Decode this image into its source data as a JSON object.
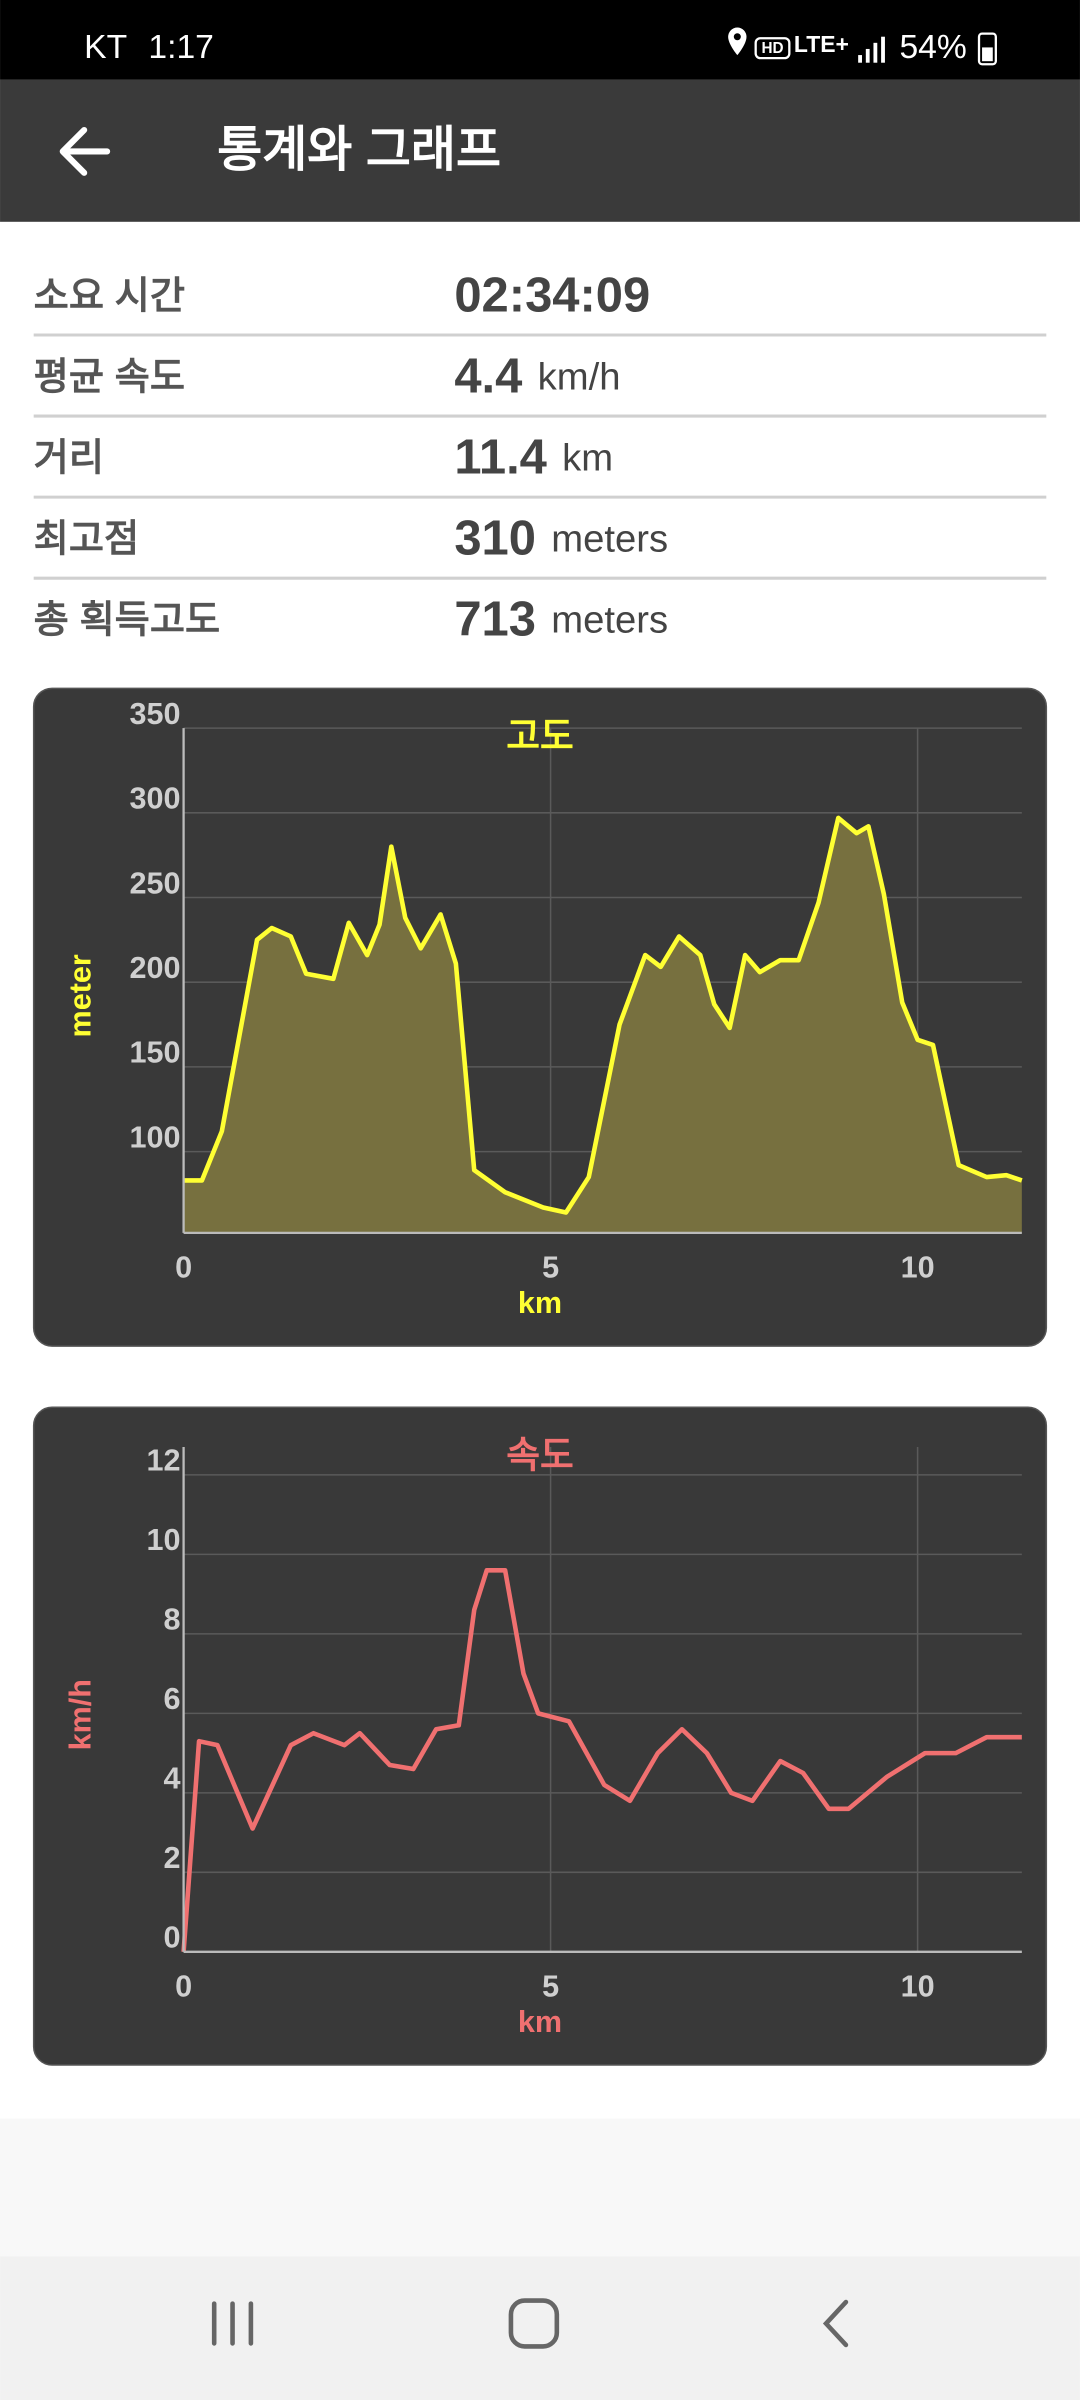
{
  "status_bar": {
    "carrier": "KT",
    "time": "1:17",
    "hd": "HD",
    "network": "LTE+",
    "battery": "54%"
  },
  "app_bar": {
    "title": "통계와 그래프"
  },
  "stats": [
    {
      "label": "소요 시간",
      "value": "02:34:09"
    },
    {
      "label": "평균 속도",
      "value": 4.4,
      "unit": "km/h"
    },
    {
      "label": "거리",
      "value": 11.4,
      "unit": "km"
    },
    {
      "label": "최고점",
      "value": 310,
      "unit": "meters"
    },
    {
      "label": "총 획득고도",
      "value": 713,
      "unit": "meters"
    }
  ],
  "chart_data": [
    {
      "type": "area",
      "title": "고도",
      "y_label": "meter",
      "x_label": "km",
      "color": "#ffff33",
      "fill_color": "#77703f",
      "grid": true,
      "x": [
        0,
        0.25,
        0.52,
        1.0,
        1.2,
        1.46,
        1.67,
        2.04,
        2.25,
        2.5,
        2.67,
        2.83,
        3.02,
        3.23,
        3.5,
        3.71,
        3.96,
        4.38,
        4.9,
        5.21,
        5.52,
        5.94,
        6.29,
        6.5,
        6.75,
        7.04,
        7.23,
        7.44,
        7.65,
        7.85,
        8.13,
        8.38,
        8.65,
        8.92,
        9.17,
        9.33,
        9.54,
        9.79,
        10.0,
        10.21,
        10.56,
        10.94,
        11.21,
        11.42
      ],
      "values": [
        83,
        83,
        112,
        225,
        232,
        227,
        205,
        202,
        235,
        216,
        234,
        280,
        238,
        220,
        240,
        211,
        89,
        76,
        67,
        64,
        85,
        175,
        216,
        209,
        227,
        216,
        187,
        173,
        216,
        206,
        213,
        213,
        247,
        297,
        288,
        292,
        252,
        188,
        166,
        163,
        92,
        85,
        86,
        83
      ],
      "xlim": [
        0,
        11.42
      ],
      "ylim": [
        52,
        350
      ],
      "xticks": [
        0,
        5,
        10
      ],
      "yticks": [
        100,
        150,
        200,
        250,
        300,
        350
      ]
    },
    {
      "type": "line",
      "title": "속도",
      "y_label": "km/h",
      "x_label": "km",
      "color": "#f07070",
      "grid": true,
      "x": [
        0,
        0.21,
        0.46,
        0.94,
        1.46,
        1.77,
        2.19,
        2.4,
        2.81,
        3.13,
        3.44,
        3.75,
        3.96,
        4.13,
        4.38,
        4.63,
        4.83,
        5.25,
        5.73,
        6.08,
        6.46,
        6.79,
        7.13,
        7.46,
        7.75,
        8.13,
        8.44,
        8.79,
        9.06,
        9.58,
        10.1,
        10.52,
        10.94,
        11.42
      ],
      "values": [
        0,
        5.3,
        5.2,
        3.1,
        5.2,
        5.5,
        5.2,
        5.5,
        4.7,
        4.6,
        5.6,
        5.7,
        8.6,
        9.6,
        9.6,
        7.0,
        6.0,
        5.8,
        4.2,
        3.8,
        5.0,
        5.6,
        5.0,
        4.0,
        3.8,
        4.8,
        4.5,
        3.6,
        3.6,
        4.4,
        5.0,
        5.0,
        5.4,
        5.4
      ],
      "xlim": [
        0,
        11.42
      ],
      "ylim": [
        0,
        12.7
      ],
      "xticks": [
        0,
        5,
        10
      ],
      "yticks": [
        0,
        2,
        4,
        6,
        8,
        10,
        12
      ]
    }
  ]
}
